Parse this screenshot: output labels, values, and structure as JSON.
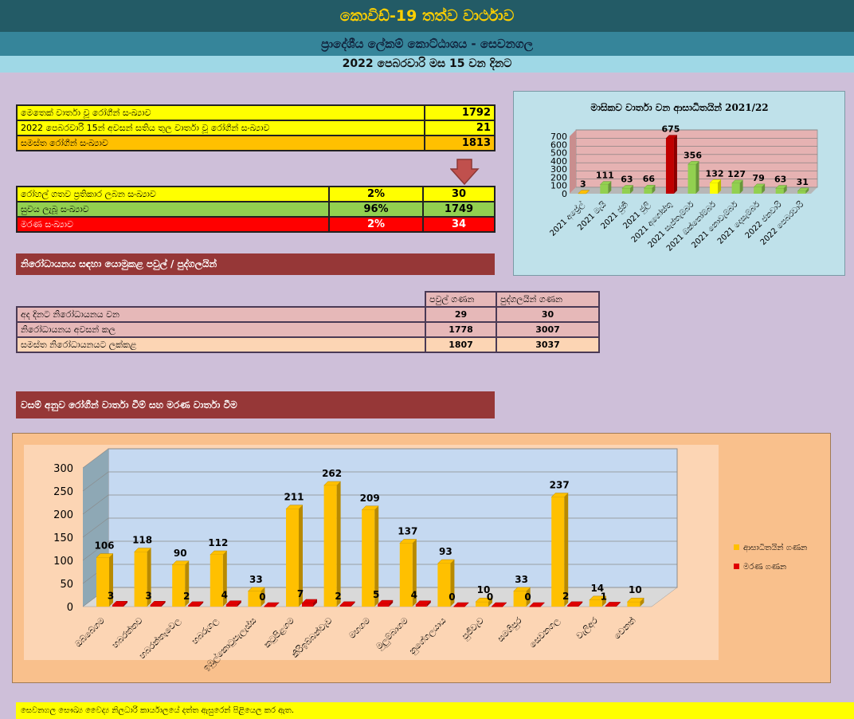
{
  "header": {
    "title": "කොවිඩ්-19 තත්ව වාර්ථාව",
    "subtitle": "ප්‍රාදේශීය ලේකම් කොට්ඨාශය - සෙවනගල",
    "date": "2022 පෙබරවාරි මස 15 වන දිනට"
  },
  "summary": {
    "rows": [
      {
        "label": "මෙතෙක් වාර්තා වූ රෝගීන් සංඛ්‍යාව",
        "value": "1792",
        "bg": "#ffff00"
      },
      {
        "label": "2022 පෙබරවාරි 15න් අවසන් සතිය තුල වාර්තා වූ රෝගීන් සංඛ්‍යාව",
        "value": "21",
        "bg": "#ffff00"
      },
      {
        "label": "සමස්ත රෝගීන් සංඛ්‍යාව",
        "value": "1813",
        "bg": "#ffc000"
      }
    ]
  },
  "status": {
    "rows": [
      {
        "label": "රෝහල් ගතව ප්‍රතිකාර ලබන සංඛ්‍යාව",
        "pct": "2%",
        "value": "30",
        "bg": "#ffff00",
        "fg": "#000000"
      },
      {
        "label": "සුවය ලැබූ සංඛ්‍යාව",
        "pct": "96%",
        "value": "1749",
        "bg": "#92d050",
        "fg": "#000000"
      },
      {
        "label": "මරණ සංඛ්‍යාව",
        "pct": "2%",
        "value": "34",
        "bg": "#ff0000",
        "fg": "#ffffff"
      }
    ]
  },
  "quarantine": {
    "heading": "නිරෝධායනය සඳහා යොමුකළ පවුල් / පුද්ගලයින්",
    "col_families": "පවුල් ගණන",
    "col_persons": "පුද්ගලයින් ගණන",
    "rows": [
      {
        "label": "අද දිනට නිරෝධායනය වන",
        "families": "29",
        "persons": "30",
        "bg": "#e6b8b8"
      },
      {
        "label": "නිරෝධායනය අවසන් කල",
        "families": "1778",
        "persons": "3007",
        "bg": "#e6b8b8"
      },
      {
        "label": "සමස්ත නිරෝධායනයට ලක්කළ",
        "families": "1807",
        "persons": "3037",
        "bg": "#fcd5b4"
      }
    ]
  },
  "village_heading": "වසම් අනුව රෝගීන් වාර්තා වීම් සහ මරණ වාර්තා වීම",
  "footer": "සෙවනගල සෞඛ්‍ය වෛද්‍ය නිලධාරි කාර්යාලයේ දත්ත ඇසුරෙන් පිළියෙල කර ඇත.",
  "chart_data": [
    {
      "type": "bar",
      "title": "මාසිකව වාර්තා වන ආසාධිතයින් 2021/22",
      "categories": [
        "2021 අප්‍රේල්",
        "2021 මැයි",
        "2021 ජුනි",
        "2021 ජුලි",
        "2021 අගෝස්තු",
        "2021 සැප්තැම්බර්",
        "2021 ඔක්තෝම්බර්",
        "2021 නොවැම්බර්",
        "2021 දෙසැම්බර්",
        "2022 ජනවාරි",
        "2022 පෙබරවාරි"
      ],
      "values": [
        3,
        111,
        63,
        66,
        675,
        356,
        132,
        127,
        79,
        63,
        31
      ],
      "colors": [
        "#ffc000",
        "#92d050",
        "#92d050",
        "#92d050",
        "#c00000",
        "#92d050",
        "#ffff00",
        "#92d050",
        "#92d050",
        "#92d050",
        "#92d050"
      ],
      "ylim": [
        0,
        700
      ],
      "yticks": [
        0,
        100,
        200,
        300,
        400,
        500,
        600,
        700
      ],
      "grid": true
    },
    {
      "type": "bar",
      "categories": [
        "ඔබ්බේගම",
        "හබරත්තව",
        "හබරන්තෑවෙල",
        "හබරුගල",
        "ඉඹුල්කොටුපැලැස්ස",
        "කටුපිළගම",
        "කිරිඉබ්බන්වැව",
        "මහගම",
        "මුලුම්බාගම",
        "නුගේගලයාය",
        "පුජිවැව",
        "සමගිපුර",
        "සෙවනගල",
        "වැලිඅර",
        "වෙනත්"
      ],
      "series": [
        {
          "name": "ආසාධිතයින් ගණන",
          "values": [
            106,
            118,
            90,
            112,
            33,
            211,
            262,
            209,
            137,
            93,
            10,
            33,
            237,
            14,
            10
          ],
          "color": "#ffc000"
        },
        {
          "name": "මරණ ගණන",
          "values": [
            3,
            3,
            2,
            4,
            0,
            7,
            2,
            5,
            4,
            0,
            0,
            0,
            2,
            1,
            null
          ],
          "color": "#e00000"
        }
      ],
      "ylim": [
        0,
        300
      ],
      "yticks": [
        0,
        50,
        100,
        150,
        200,
        250,
        300
      ],
      "legend": "right",
      "grid": true
    }
  ]
}
